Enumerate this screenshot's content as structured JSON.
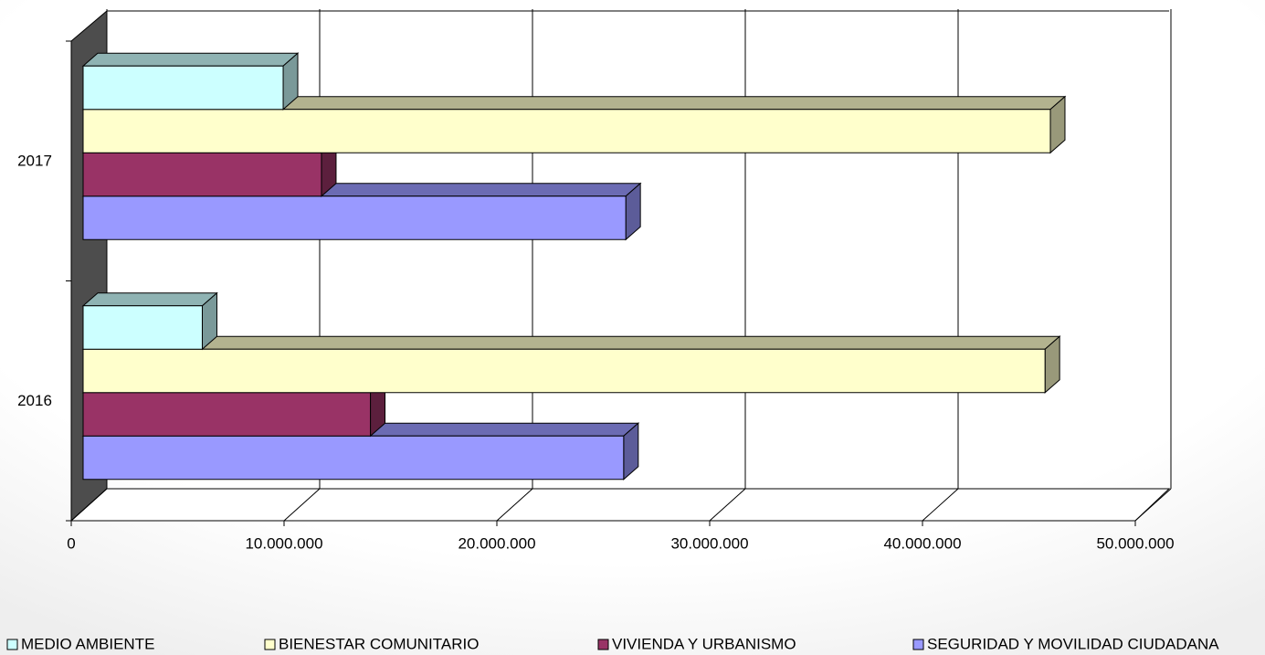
{
  "chart_data": {
    "type": "bar3d_horizontal",
    "categories": [
      "2016",
      "2017"
    ],
    "series": [
      {
        "name": "MEDIO AMBIENTE",
        "color": "#CCFFFF",
        "values": [
          5600000,
          9400000
        ]
      },
      {
        "name": "BIENESTAR COMUNITARIO",
        "color": "#FFFFCC",
        "values": [
          45200000,
          45450000
        ]
      },
      {
        "name": "VIVIENDA Y URBANISMO",
        "color": "#993366",
        "values": [
          13500000,
          11200000
        ]
      },
      {
        "name": "SEGURIDAD Y MOVILIDAD CIUDADANA",
        "color": "#9999FF",
        "values": [
          25400000,
          25500000
        ]
      }
    ],
    "xlim": [
      0,
      50000000
    ],
    "xticks": [
      0,
      {
        "value": 10000000,
        "label": "10.000.000"
      },
      {
        "value": 20000000,
        "label": "20.000.000"
      },
      {
        "value": 30000000,
        "label": "30.000.000"
      },
      {
        "value": 40000000,
        "label": "40.000.000"
      },
      {
        "value": 50000000,
        "label": "50.000.000"
      }
    ],
    "grid": true
  }
}
